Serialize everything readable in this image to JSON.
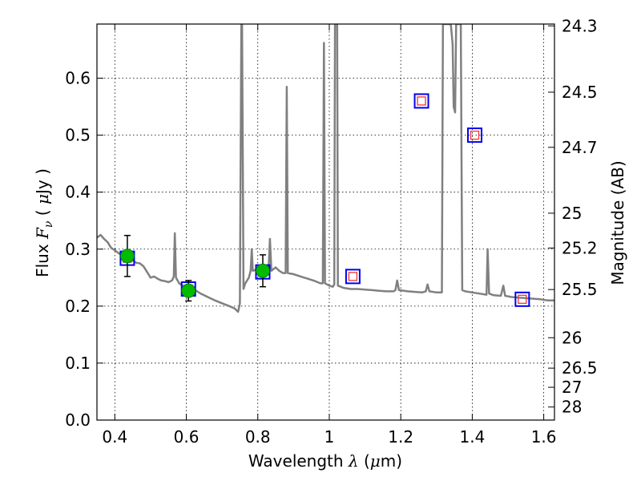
{
  "chart_data": {
    "type": "scatter",
    "title": "",
    "xlabel": {
      "prefix": "Wavelength  ",
      "symbol": "λ",
      "unit_pre": " (",
      "unit_mu": "μ",
      "unit_post": "m)"
    },
    "ylabel": {
      "prefix": "Flux  ",
      "symbol": "F",
      "subscript": "ν",
      "unit_pre": "  ( ",
      "unit_mu": "μ",
      "unit_post": "Jy )"
    },
    "y2label": "Magnitude (AB)",
    "xlim": [
      0.35,
      1.63
    ],
    "ylim": [
      0.0,
      0.695
    ],
    "grid": true,
    "x_ticks": [
      0.4,
      0.6,
      0.8,
      1.0,
      1.2,
      1.4,
      1.6
    ],
    "x_tick_labels": [
      "0.4",
      "0.6",
      "0.8",
      "1",
      "1.2",
      "1.4",
      "1.6"
    ],
    "y_ticks": [
      0.0,
      0.1,
      0.2,
      0.3,
      0.4,
      0.5,
      0.6
    ],
    "y_tick_labels": [
      "0.0",
      "0.1",
      "0.2",
      "0.3",
      "0.4",
      "0.5",
      "0.6"
    ],
    "y2_ticks": [
      {
        "mag": 24.3,
        "label": "24.3"
      },
      {
        "mag": 24.5,
        "label": "24.5"
      },
      {
        "mag": 24.7,
        "label": "24.7"
      },
      {
        "mag": 25.0,
        "label": "25"
      },
      {
        "mag": 25.2,
        "label": "25.2"
      },
      {
        "mag": 25.5,
        "label": "25.5"
      },
      {
        "mag": 26.0,
        "label": "26"
      },
      {
        "mag": 26.5,
        "label": "26.5"
      },
      {
        "mag": 27.0,
        "label": "27"
      },
      {
        "mag": 28.0,
        "label": "28"
      }
    ],
    "colors": {
      "sed": "#808080",
      "observed": "#00bb00",
      "model_box": "#0000ee",
      "model_inner": "#ee3333",
      "errorbar": "#000000"
    },
    "sed_spectrum": [
      [
        0.35,
        0.32
      ],
      [
        0.36,
        0.325
      ],
      [
        0.37,
        0.318
      ],
      [
        0.38,
        0.312
      ],
      [
        0.39,
        0.302
      ],
      [
        0.4,
        0.298
      ],
      [
        0.41,
        0.293
      ],
      [
        0.42,
        0.29
      ],
      [
        0.43,
        0.289
      ],
      [
        0.44,
        0.286
      ],
      [
        0.45,
        0.28
      ],
      [
        0.46,
        0.276
      ],
      [
        0.47,
        0.275
      ],
      [
        0.48,
        0.27
      ],
      [
        0.49,
        0.26
      ],
      [
        0.5,
        0.25
      ],
      [
        0.51,
        0.252
      ],
      [
        0.52,
        0.248
      ],
      [
        0.53,
        0.245
      ],
      [
        0.54,
        0.244
      ],
      [
        0.55,
        0.242
      ],
      [
        0.56,
        0.245
      ],
      [
        0.565,
        0.252
      ],
      [
        0.568,
        0.328
      ],
      [
        0.571,
        0.25
      ],
      [
        0.58,
        0.24
      ],
      [
        0.59,
        0.236
      ],
      [
        0.6,
        0.234
      ],
      [
        0.62,
        0.23
      ],
      [
        0.64,
        0.222
      ],
      [
        0.66,
        0.216
      ],
      [
        0.68,
        0.21
      ],
      [
        0.7,
        0.205
      ],
      [
        0.72,
        0.2
      ],
      [
        0.735,
        0.196
      ],
      [
        0.745,
        0.19
      ],
      [
        0.75,
        0.205
      ],
      [
        0.754,
        0.695
      ],
      [
        0.756,
        0.695
      ],
      [
        0.76,
        0.23
      ],
      [
        0.765,
        0.24
      ],
      [
        0.775,
        0.25
      ],
      [
        0.78,
        0.262
      ],
      [
        0.783,
        0.3
      ],
      [
        0.786,
        0.262
      ],
      [
        0.8,
        0.265
      ],
      [
        0.81,
        0.262
      ],
      [
        0.82,
        0.265
      ],
      [
        0.83,
        0.262
      ],
      [
        0.834,
        0.318
      ],
      [
        0.838,
        0.262
      ],
      [
        0.85,
        0.268
      ],
      [
        0.86,
        0.262
      ],
      [
        0.87,
        0.258
      ],
      [
        0.878,
        0.258
      ],
      [
        0.881,
        0.585
      ],
      [
        0.884,
        0.258
      ],
      [
        0.9,
        0.256
      ],
      [
        0.92,
        0.252
      ],
      [
        0.94,
        0.248
      ],
      [
        0.96,
        0.244
      ],
      [
        0.975,
        0.24
      ],
      [
        0.982,
        0.24
      ],
      [
        0.985,
        0.662
      ],
      [
        0.988,
        0.24
      ],
      [
        1.0,
        0.236
      ],
      [
        1.01,
        0.234
      ],
      [
        1.014,
        0.238
      ],
      [
        1.016,
        0.695
      ],
      [
        1.022,
        0.695
      ],
      [
        1.024,
        0.236
      ],
      [
        1.04,
        0.232
      ],
      [
        1.06,
        0.23
      ],
      [
        1.08,
        0.23
      ],
      [
        1.1,
        0.229
      ],
      [
        1.12,
        0.228
      ],
      [
        1.14,
        0.227
      ],
      [
        1.16,
        0.226
      ],
      [
        1.18,
        0.226
      ],
      [
        1.185,
        0.228
      ],
      [
        1.19,
        0.245
      ],
      [
        1.195,
        0.228
      ],
      [
        1.22,
        0.226
      ],
      [
        1.24,
        0.225
      ],
      [
        1.26,
        0.224
      ],
      [
        1.27,
        0.226
      ],
      [
        1.275,
        0.238
      ],
      [
        1.28,
        0.226
      ],
      [
        1.3,
        0.224
      ],
      [
        1.315,
        0.224
      ],
      [
        1.318,
        0.695
      ],
      [
        1.34,
        0.695
      ],
      [
        1.345,
        0.66
      ],
      [
        1.348,
        0.55
      ],
      [
        1.352,
        0.54
      ],
      [
        1.355,
        0.695
      ],
      [
        1.36,
        0.695
      ],
      [
        1.368,
        0.695
      ],
      [
        1.372,
        0.228
      ],
      [
        1.38,
        0.226
      ],
      [
        1.4,
        0.224
      ],
      [
        1.42,
        0.222
      ],
      [
        1.44,
        0.22
      ],
      [
        1.443,
        0.3
      ],
      [
        1.447,
        0.222
      ],
      [
        1.46,
        0.219
      ],
      [
        1.48,
        0.218
      ],
      [
        1.487,
        0.236
      ],
      [
        1.492,
        0.218
      ],
      [
        1.51,
        0.216
      ],
      [
        1.53,
        0.215
      ],
      [
        1.55,
        0.214
      ],
      [
        1.57,
        0.213
      ],
      [
        1.59,
        0.212
      ],
      [
        1.61,
        0.21
      ],
      [
        1.63,
        0.21
      ]
    ],
    "observed_points": [
      {
        "x": 0.435,
        "y": 0.288,
        "err": 0.036
      },
      {
        "x": 0.606,
        "y": 0.227,
        "err": 0.018
      },
      {
        "x": 0.814,
        "y": 0.262,
        "err": 0.028
      }
    ],
    "model_points": [
      {
        "x": 0.435,
        "y": 0.284
      },
      {
        "x": 0.606,
        "y": 0.23
      },
      {
        "x": 0.814,
        "y": 0.26
      },
      {
        "x": 1.066,
        "y": 0.252
      },
      {
        "x": 1.258,
        "y": 0.56
      },
      {
        "x": 1.407,
        "y": 0.5
      },
      {
        "x": 1.54,
        "y": 0.212
      }
    ]
  }
}
